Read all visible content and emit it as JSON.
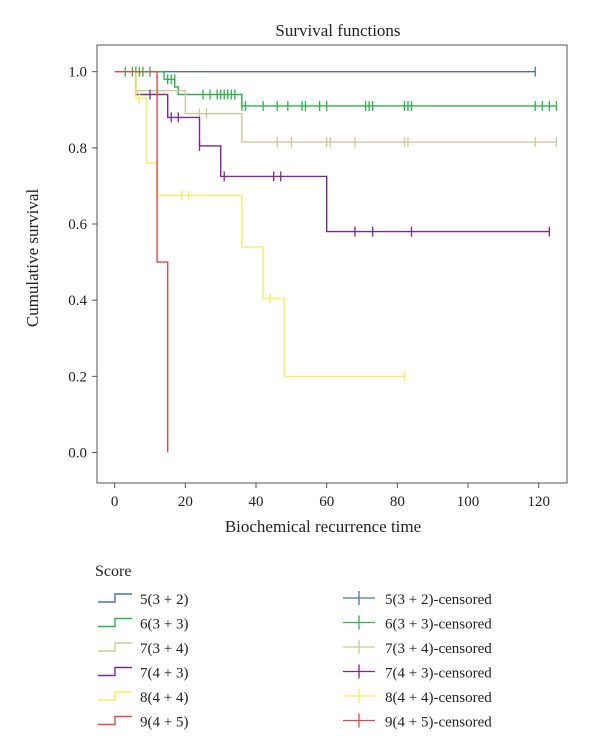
{
  "chart_data": {
    "type": "line",
    "subtype": "kaplan-meier",
    "title": "Survival functions",
    "xlabel": "Biochemical recurrence time",
    "ylabel": "Cumulative survival",
    "xlim": [
      -5,
      128
    ],
    "ylim": [
      -0.08,
      1.07
    ],
    "xticks": [
      0,
      20,
      40,
      60,
      80,
      100,
      120
    ],
    "yticks": [
      0.0,
      0.2,
      0.4,
      0.6,
      0.8,
      1.0
    ],
    "xtick_labels": [
      "0",
      "20",
      "40",
      "60",
      "80",
      "100",
      "120"
    ],
    "ytick_labels": [
      "0.0",
      "0.2",
      "0.4",
      "0.6",
      "0.8",
      "1.0"
    ],
    "grid": false,
    "legend_title": "Score",
    "series": [
      {
        "name": "5(3 + 2)",
        "censored_name": "5(3 + 2)-censored",
        "color": "#4a6fb5",
        "steps": [
          [
            0,
            1.0
          ],
          [
            119,
            1.0
          ]
        ],
        "censored": [
          [
            119,
            1.0
          ]
        ]
      },
      {
        "name": "6(3 + 3)",
        "censored_name": "6(3 + 3)-censored",
        "color": "#2cb34a",
        "steps": [
          [
            0,
            1.0
          ],
          [
            14,
            1.0
          ],
          [
            14,
            0.98
          ],
          [
            17,
            0.98
          ],
          [
            17,
            0.96
          ],
          [
            18,
            0.96
          ],
          [
            18,
            0.94
          ],
          [
            36,
            0.94
          ],
          [
            36,
            0.91
          ],
          [
            125,
            0.91
          ]
        ],
        "censored": [
          [
            3,
            1.0
          ],
          [
            5,
            1.0
          ],
          [
            6,
            1.0
          ],
          [
            7,
            1.0
          ],
          [
            8,
            1.0
          ],
          [
            10,
            1.0
          ],
          [
            15,
            0.98
          ],
          [
            16,
            0.98
          ],
          [
            17,
            0.98
          ],
          [
            25,
            0.94
          ],
          [
            27,
            0.94
          ],
          [
            29,
            0.94
          ],
          [
            30,
            0.94
          ],
          [
            31,
            0.94
          ],
          [
            32,
            0.94
          ],
          [
            33,
            0.94
          ],
          [
            34,
            0.94
          ],
          [
            36,
            0.91
          ],
          [
            37,
            0.91
          ],
          [
            42,
            0.91
          ],
          [
            46,
            0.91
          ],
          [
            49,
            0.91
          ],
          [
            53,
            0.91
          ],
          [
            54,
            0.91
          ],
          [
            58,
            0.91
          ],
          [
            60,
            0.91
          ],
          [
            71,
            0.91
          ],
          [
            72,
            0.91
          ],
          [
            73,
            0.91
          ],
          [
            82,
            0.91
          ],
          [
            83,
            0.91
          ],
          [
            84,
            0.91
          ],
          [
            119,
            0.91
          ],
          [
            121,
            0.91
          ],
          [
            123,
            0.91
          ],
          [
            125,
            0.91
          ]
        ]
      },
      {
        "name": "7(3 + 4)",
        "censored_name": "7(3 + 4)-censored",
        "color": "#ccc89a",
        "steps": [
          [
            0,
            1.0
          ],
          [
            6,
            1.0
          ],
          [
            6,
            0.95
          ],
          [
            20,
            0.95
          ],
          [
            20,
            0.89
          ],
          [
            36,
            0.89
          ],
          [
            36,
            0.815
          ],
          [
            125,
            0.815
          ]
        ],
        "censored": [
          [
            24,
            0.89
          ],
          [
            26,
            0.89
          ],
          [
            46,
            0.815
          ],
          [
            50,
            0.815
          ],
          [
            60,
            0.815
          ],
          [
            61,
            0.815
          ],
          [
            68,
            0.815
          ],
          [
            82,
            0.815
          ],
          [
            83,
            0.815
          ],
          [
            119,
            0.815
          ],
          [
            125,
            0.815
          ]
        ]
      },
      {
        "name": "7(4 + 3)",
        "censored_name": "7(4 + 3)-censored",
        "color": "#7a2a8c",
        "steps": [
          [
            0,
            1.0
          ],
          [
            6,
            1.0
          ],
          [
            6,
            0.94
          ],
          [
            15,
            0.94
          ],
          [
            15,
            0.88
          ],
          [
            24,
            0.88
          ],
          [
            24,
            0.805
          ],
          [
            30,
            0.805
          ],
          [
            30,
            0.725
          ],
          [
            60,
            0.725
          ],
          [
            60,
            0.58
          ],
          [
            123,
            0.58
          ]
        ],
        "censored": [
          [
            10,
            0.94
          ],
          [
            16,
            0.88
          ],
          [
            18,
            0.88
          ],
          [
            24,
            0.805
          ],
          [
            31,
            0.725
          ],
          [
            45,
            0.725
          ],
          [
            47,
            0.725
          ],
          [
            68,
            0.58
          ],
          [
            73,
            0.58
          ],
          [
            84,
            0.58
          ],
          [
            123,
            0.58
          ]
        ]
      },
      {
        "name": "8(4 + 4)",
        "censored_name": "8(4 + 4)-censored",
        "color": "#f7ee5a",
        "steps": [
          [
            0,
            1.0
          ],
          [
            6,
            1.0
          ],
          [
            6,
            0.93
          ],
          [
            9,
            0.93
          ],
          [
            9,
            0.76
          ],
          [
            12,
            0.76
          ],
          [
            12,
            0.675
          ],
          [
            36,
            0.675
          ],
          [
            36,
            0.54
          ],
          [
            42,
            0.54
          ],
          [
            42,
            0.405
          ],
          [
            48,
            0.405
          ],
          [
            48,
            0.2
          ],
          [
            82,
            0.2
          ]
        ],
        "censored": [
          [
            7,
            0.93
          ],
          [
            19,
            0.675
          ],
          [
            21,
            0.675
          ],
          [
            44,
            0.405
          ],
          [
            82,
            0.2
          ]
        ]
      },
      {
        "name": "9(4 + 5)",
        "censored_name": "9(4 + 5)-censored",
        "color": "#e24a4a",
        "steps": [
          [
            0,
            1.0
          ],
          [
            12,
            1.0
          ],
          [
            12,
            0.5
          ],
          [
            15,
            0.5
          ],
          [
            15,
            0.0
          ]
        ],
        "censored": []
      }
    ]
  }
}
